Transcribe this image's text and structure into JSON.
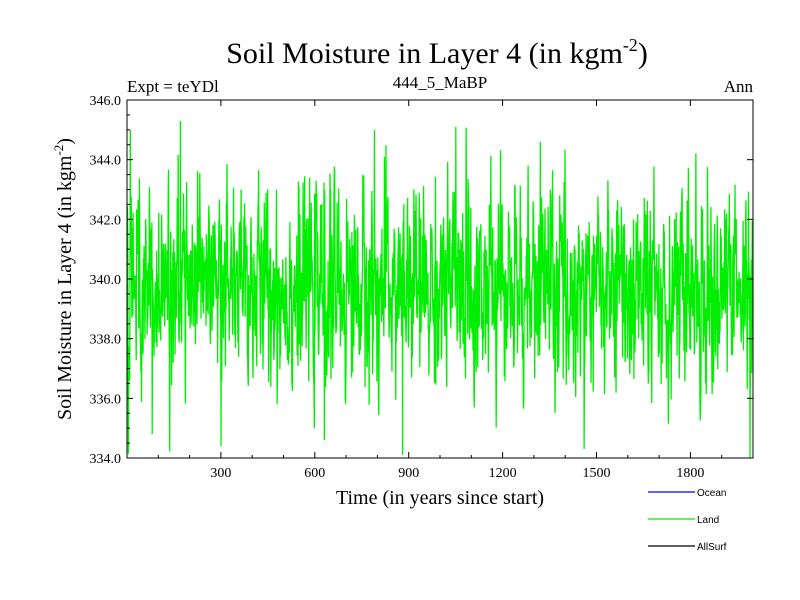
{
  "chart_data": {
    "type": "line",
    "title": "Soil Moisture in Layer 4 (in kgm",
    "title_sup": "-2",
    "title_close": ")",
    "subtitle_left": "Expt = teYDl",
    "subtitle_center": "444_5_MaBP",
    "subtitle_right": "Ann",
    "xlabel": "Time (in years since start)",
    "ylabel": "Soil Moisture in Layer 4 (in kgm",
    "ylabel_sup": "-2",
    "ylabel_close": ")",
    "xlim": [
      0,
      2000
    ],
    "ylim": [
      334.0,
      346.0
    ],
    "xticks": [
      300,
      600,
      900,
      1200,
      1500,
      1800
    ],
    "xtick_labels": [
      "300",
      "600",
      "900",
      "1200",
      "1500",
      "1800"
    ],
    "yticks": [
      334.0,
      336.0,
      338.0,
      340.0,
      342.0,
      344.0,
      346.0
    ],
    "ytick_labels": [
      "334.0",
      "336.0",
      "338.0",
      "340.0",
      "342.0",
      "344.0",
      "346.0"
    ],
    "legend": [
      {
        "name": "Ocean",
        "color": "#0000ff"
      },
      {
        "name": "Land",
        "color": "#00ee00"
      },
      {
        "name": "AllSurf",
        "color": "#000000"
      }
    ],
    "legend_position": "bottom-right",
    "series": [
      {
        "name": "Land",
        "color": "#00ee00",
        "n_points": 2000,
        "mean": 339.7,
        "std": 1.6,
        "min": 334.0,
        "max": 345.3,
        "highlights": [
          {
            "x": 10,
            "y": 345.0
          },
          {
            "x": 170,
            "y": 345.3
          },
          {
            "x": 80,
            "y": 334.8
          },
          {
            "x": 300,
            "y": 334.4
          },
          {
            "x": 630,
            "y": 334.6
          },
          {
            "x": 790,
            "y": 345.0
          },
          {
            "x": 880,
            "y": 334.1
          },
          {
            "x": 1050,
            "y": 345.1
          },
          {
            "x": 1320,
            "y": 344.6
          },
          {
            "x": 1460,
            "y": 334.3
          },
          {
            "x": 1990,
            "y": 334.0
          }
        ]
      }
    ]
  }
}
